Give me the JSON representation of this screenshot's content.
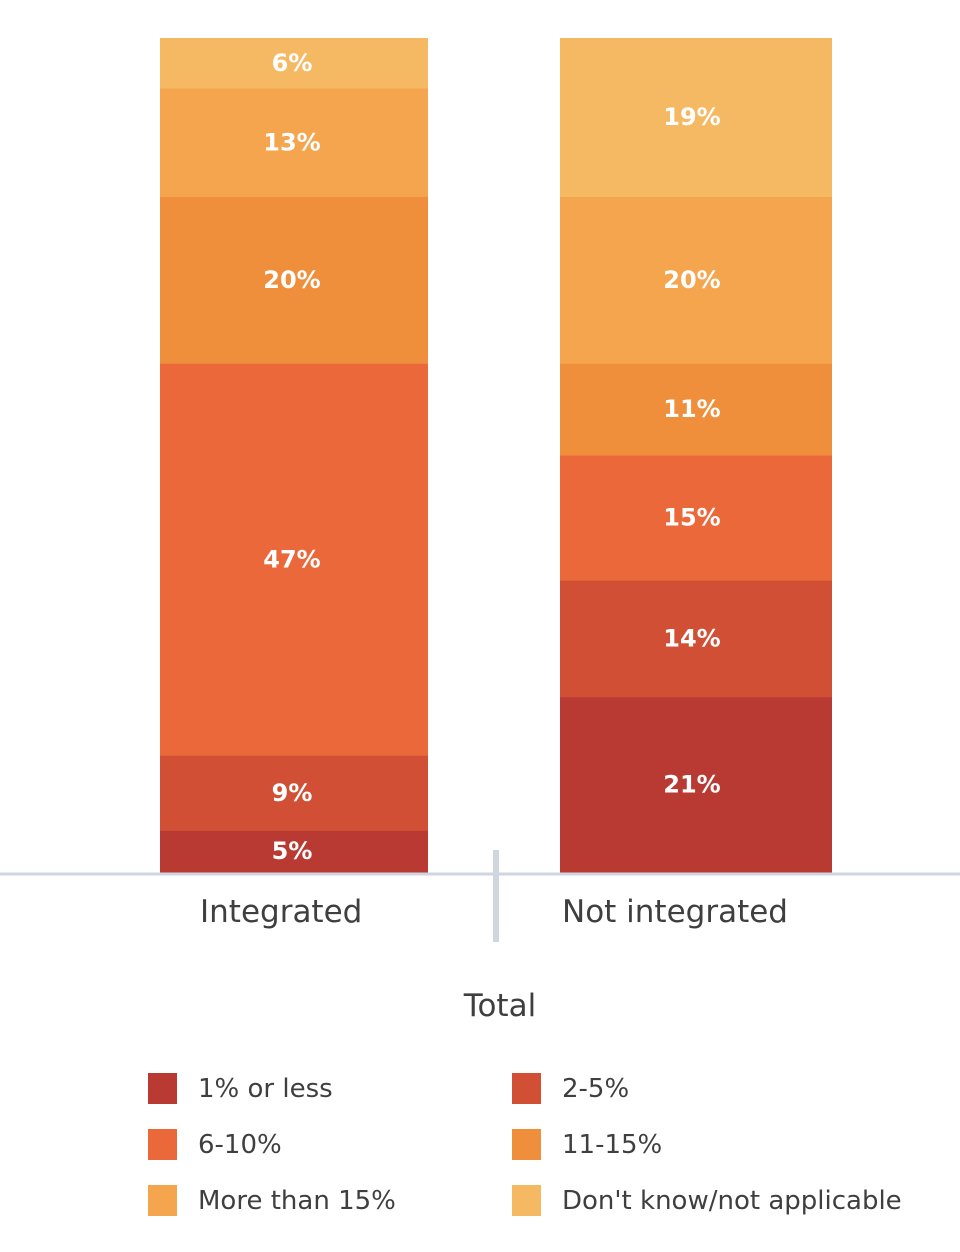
{
  "chart_data": {
    "type": "bar",
    "stacked": true,
    "orientation": "vertical",
    "normalized_to_percent": true,
    "categories": [
      "Integrated",
      "Not integrated"
    ],
    "xlabel": "Total",
    "series": [
      {
        "name": "1% or less",
        "values": [
          5,
          21
        ],
        "labels": [
          "5%",
          "21%"
        ],
        "color": "#b83a32"
      },
      {
        "name": "2-5%",
        "values": [
          9,
          14
        ],
        "labels": [
          "9%",
          "14%"
        ],
        "color": "#d15035"
      },
      {
        "name": "6-10%",
        "values": [
          47,
          15
        ],
        "labels": [
          "47%",
          "15%"
        ],
        "color": "#eb683a"
      },
      {
        "name": "11-15%",
        "values": [
          20,
          11
        ],
        "labels": [
          "20%",
          "11%"
        ],
        "color": "#f08f3b"
      },
      {
        "name": "More than 15%",
        "values": [
          13,
          20
        ],
        "labels": [
          "13%",
          "20%"
        ],
        "color": "#f4a54d"
      },
      {
        "name": "Don't know/not applicable",
        "values": [
          6,
          19
        ],
        "labels": [
          "6%",
          "19%"
        ],
        "color": "#f5b964"
      }
    ],
    "legend_position": "bottom",
    "grid": false
  }
}
